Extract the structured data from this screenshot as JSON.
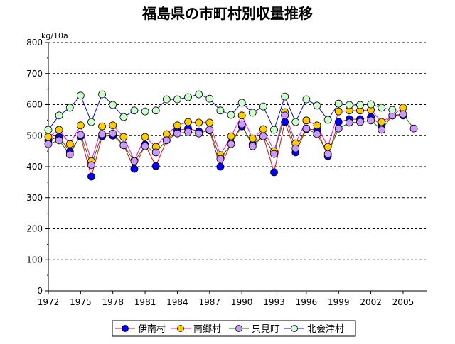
{
  "chart_data": {
    "type": "line",
    "title": "福島県の市町村別収量推移",
    "ylabel": "kg/10a",
    "xlabel": "",
    "ylim": [
      0,
      800
    ],
    "yticks": [
      "0",
      "100",
      "200",
      "300",
      "400",
      "500",
      "600",
      "700",
      "800"
    ],
    "xticks": [
      "1972",
      "1975",
      "1978",
      "1981",
      "1984",
      "1987",
      "1990",
      "1993",
      "1996",
      "1999",
      "2002",
      "2005"
    ],
    "xstart": 1972,
    "grid": "horizontal dashed",
    "legend": "bottom",
    "series": [
      {
        "name": "伊南村",
        "line": "#ff0000",
        "marker": "#0000ff",
        "values": [
          485,
          496,
          448,
          498,
          368,
          498,
          500,
          469,
          393,
          471,
          402,
          485,
          517,
          523,
          514,
          517,
          400,
          475,
          530,
          473,
          498,
          382,
          544,
          446,
          521,
          519,
          434,
          544,
          553,
          553,
          560,
          533,
          565,
          565,
          null
        ]
      },
      {
        "name": "南郷村",
        "line": "#ff00ff",
        "marker": "#ffcc00",
        "values": [
          496,
          519,
          473,
          533,
          418,
          530,
          533,
          496,
          420,
          496,
          464,
          505,
          533,
          544,
          542,
          542,
          437,
          498,
          565,
          491,
          521,
          450,
          576,
          475,
          549,
          533,
          464,
          578,
          581,
          581,
          583,
          544,
          565,
          590,
          null
        ]
      },
      {
        "name": "只見町",
        "line": "#008000",
        "marker": "#cc99ff",
        "values": [
          473,
          485,
          439,
          503,
          405,
          505,
          507,
          469,
          418,
          466,
          446,
          485,
          507,
          512,
          507,
          519,
          425,
          473,
          537,
          466,
          498,
          441,
          565,
          459,
          523,
          505,
          441,
          523,
          542,
          544,
          549,
          519,
          565,
          569,
          523
        ]
      },
      {
        "name": "北会津村",
        "line": "#0000ff",
        "marker": "#ccffcc",
        "values": [
          519,
          565,
          590,
          629,
          544,
          633,
          599,
          560,
          581,
          578,
          581,
          617,
          617,
          624,
          633,
          619,
          581,
          567,
          606,
          574,
          594,
          519,
          626,
          544,
          617,
          597,
          551,
          603,
          599,
          599,
          601,
          590,
          583,
          null,
          null
        ]
      }
    ]
  }
}
